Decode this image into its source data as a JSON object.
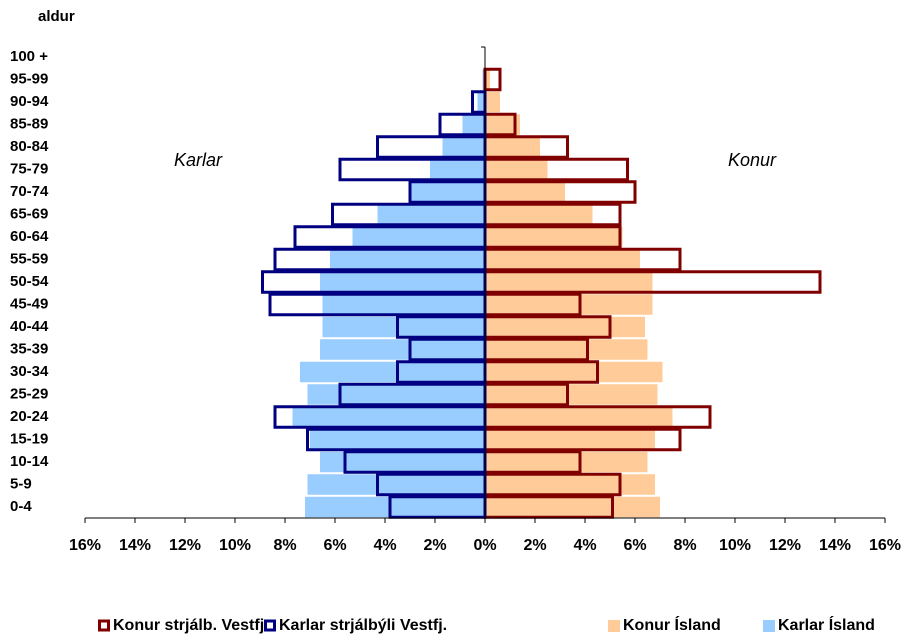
{
  "chart_data": {
    "type": "pyramid",
    "y_axis_label": "aldur",
    "annotations": [
      "Karlar",
      "Konur"
    ],
    "categories": [
      "0-4",
      "5-9",
      "10-14",
      "15-19",
      "20-24",
      "25-29",
      "30-34",
      "35-39",
      "40-44",
      "45-49",
      "50-54",
      "55-59",
      "60-64",
      "65-69",
      "70-74",
      "75-79",
      "80-84",
      "85-89",
      "90-94",
      "95-99",
      "100 +"
    ],
    "series": [
      {
        "name": "Konur strjálb. Vestfj.",
        "color": "#800000",
        "style": "outline",
        "values": [
          5.1,
          5.4,
          3.8,
          7.8,
          9.0,
          3.3,
          4.5,
          4.1,
          5.0,
          3.8,
          13.4,
          7.8,
          5.4,
          5.4,
          6.0,
          5.7,
          3.3,
          1.2,
          0,
          0.6,
          0
        ]
      },
      {
        "name": "Karlar strjálbýli Vestfj.",
        "color": "#000080",
        "style": "outline",
        "values": [
          -3.8,
          -4.3,
          -5.6,
          -7.1,
          -8.4,
          -5.8,
          -3.5,
          -3.0,
          -3.5,
          -8.6,
          -8.9,
          -8.4,
          -7.6,
          -6.1,
          -3.0,
          -5.8,
          -4.3,
          -1.8,
          -0.5,
          0,
          0
        ]
      },
      {
        "name": "Konur Ísland",
        "color": "#FFCC99",
        "style": "fill",
        "values": [
          7.0,
          6.8,
          6.5,
          6.8,
          7.5,
          6.9,
          7.1,
          6.5,
          6.4,
          6.7,
          6.7,
          6.2,
          5.5,
          4.3,
          3.2,
          2.5,
          2.2,
          1.4,
          0.6,
          0.2,
          0
        ]
      },
      {
        "name": "Karlar Ísland",
        "color": "#99CCFF",
        "style": "fill",
        "values": [
          -7.2,
          -7.1,
          -6.6,
          -7.0,
          -7.7,
          -7.1,
          -7.4,
          -6.6,
          -6.5,
          -6.5,
          -6.6,
          -6.2,
          -5.3,
          -4.3,
          -3.0,
          -2.2,
          -1.7,
          -0.9,
          -0.3,
          -0.1,
          0
        ]
      }
    ],
    "xlim": [
      -16,
      16
    ],
    "xticks": [
      {
        "value": -16,
        "label": "16%"
      },
      {
        "value": -14,
        "label": "14%"
      },
      {
        "value": -12,
        "label": "12%"
      },
      {
        "value": -10,
        "label": "10%"
      },
      {
        "value": -8,
        "label": "8%"
      },
      {
        "value": -6,
        "label": "6%"
      },
      {
        "value": -4,
        "label": "4%"
      },
      {
        "value": -2,
        "label": "2%"
      },
      {
        "value": 0,
        "label": "0%"
      },
      {
        "value": 2,
        "label": "2%"
      },
      {
        "value": 4,
        "label": "4%"
      },
      {
        "value": 6,
        "label": "6%"
      },
      {
        "value": 8,
        "label": "8%"
      },
      {
        "value": 10,
        "label": "10%"
      },
      {
        "value": 12,
        "label": "12%"
      },
      {
        "value": 14,
        "label": "14%"
      },
      {
        "value": 16,
        "label": "16%"
      }
    ],
    "legend": "bottom"
  }
}
